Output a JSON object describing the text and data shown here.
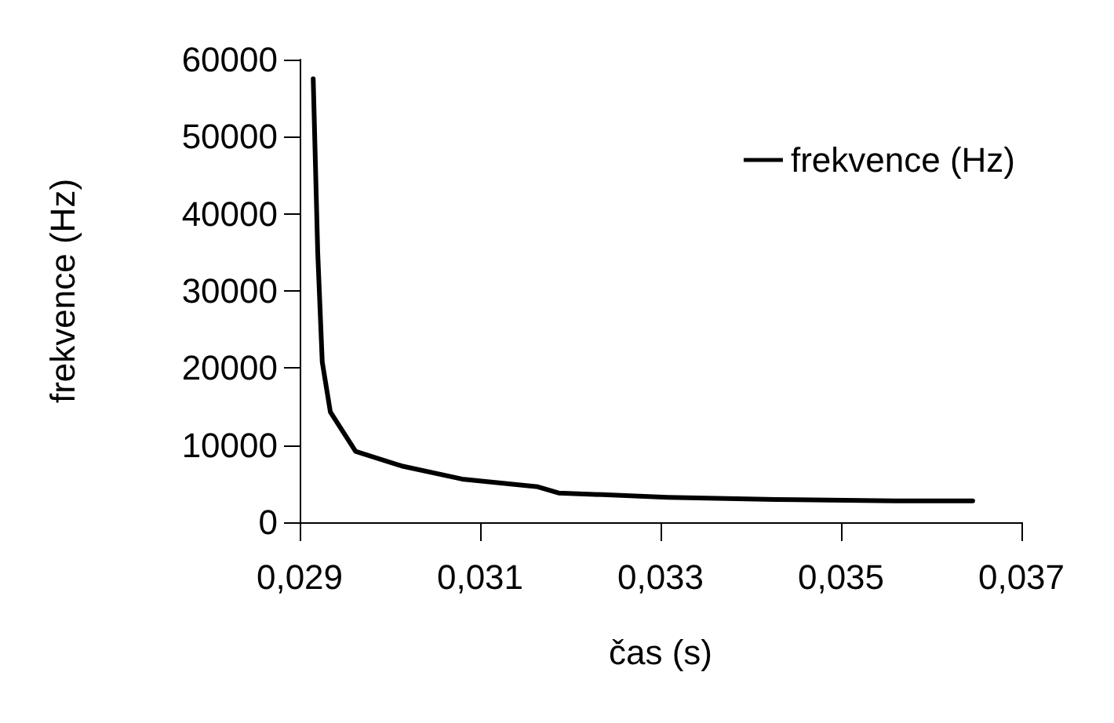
{
  "chart_data": {
    "type": "line",
    "xlabel": "čas (s)",
    "ylabel": "frekvence (Hz)",
    "x": [
      0.02915,
      0.0292,
      0.02925,
      0.02934,
      0.02962,
      0.03013,
      0.0308,
      0.03164,
      0.03187,
      0.03308,
      0.03428,
      0.0356,
      0.03646
    ],
    "series": [
      {
        "name": "frekvence (Hz)",
        "color": "#000000",
        "values": [
          57500,
          35000,
          20800,
          14300,
          9200,
          7300,
          5600,
          4600,
          3800,
          3240,
          2960,
          2760,
          2760
        ]
      }
    ],
    "xlim": [
      0.029,
      0.037
    ],
    "xticks": [
      {
        "value": 0.029,
        "label": "0,029"
      },
      {
        "value": 0.031,
        "label": "0,031"
      },
      {
        "value": 0.033,
        "label": "0,033"
      },
      {
        "value": 0.035,
        "label": "0,035"
      },
      {
        "value": 0.037,
        "label": "0,037"
      }
    ],
    "ylim": [
      0,
      60000
    ],
    "yticks": [
      0,
      10000,
      20000,
      30000,
      40000,
      50000,
      60000
    ],
    "grid": false,
    "legend": "top right",
    "marker": "none",
    "line_style": "solid"
  }
}
